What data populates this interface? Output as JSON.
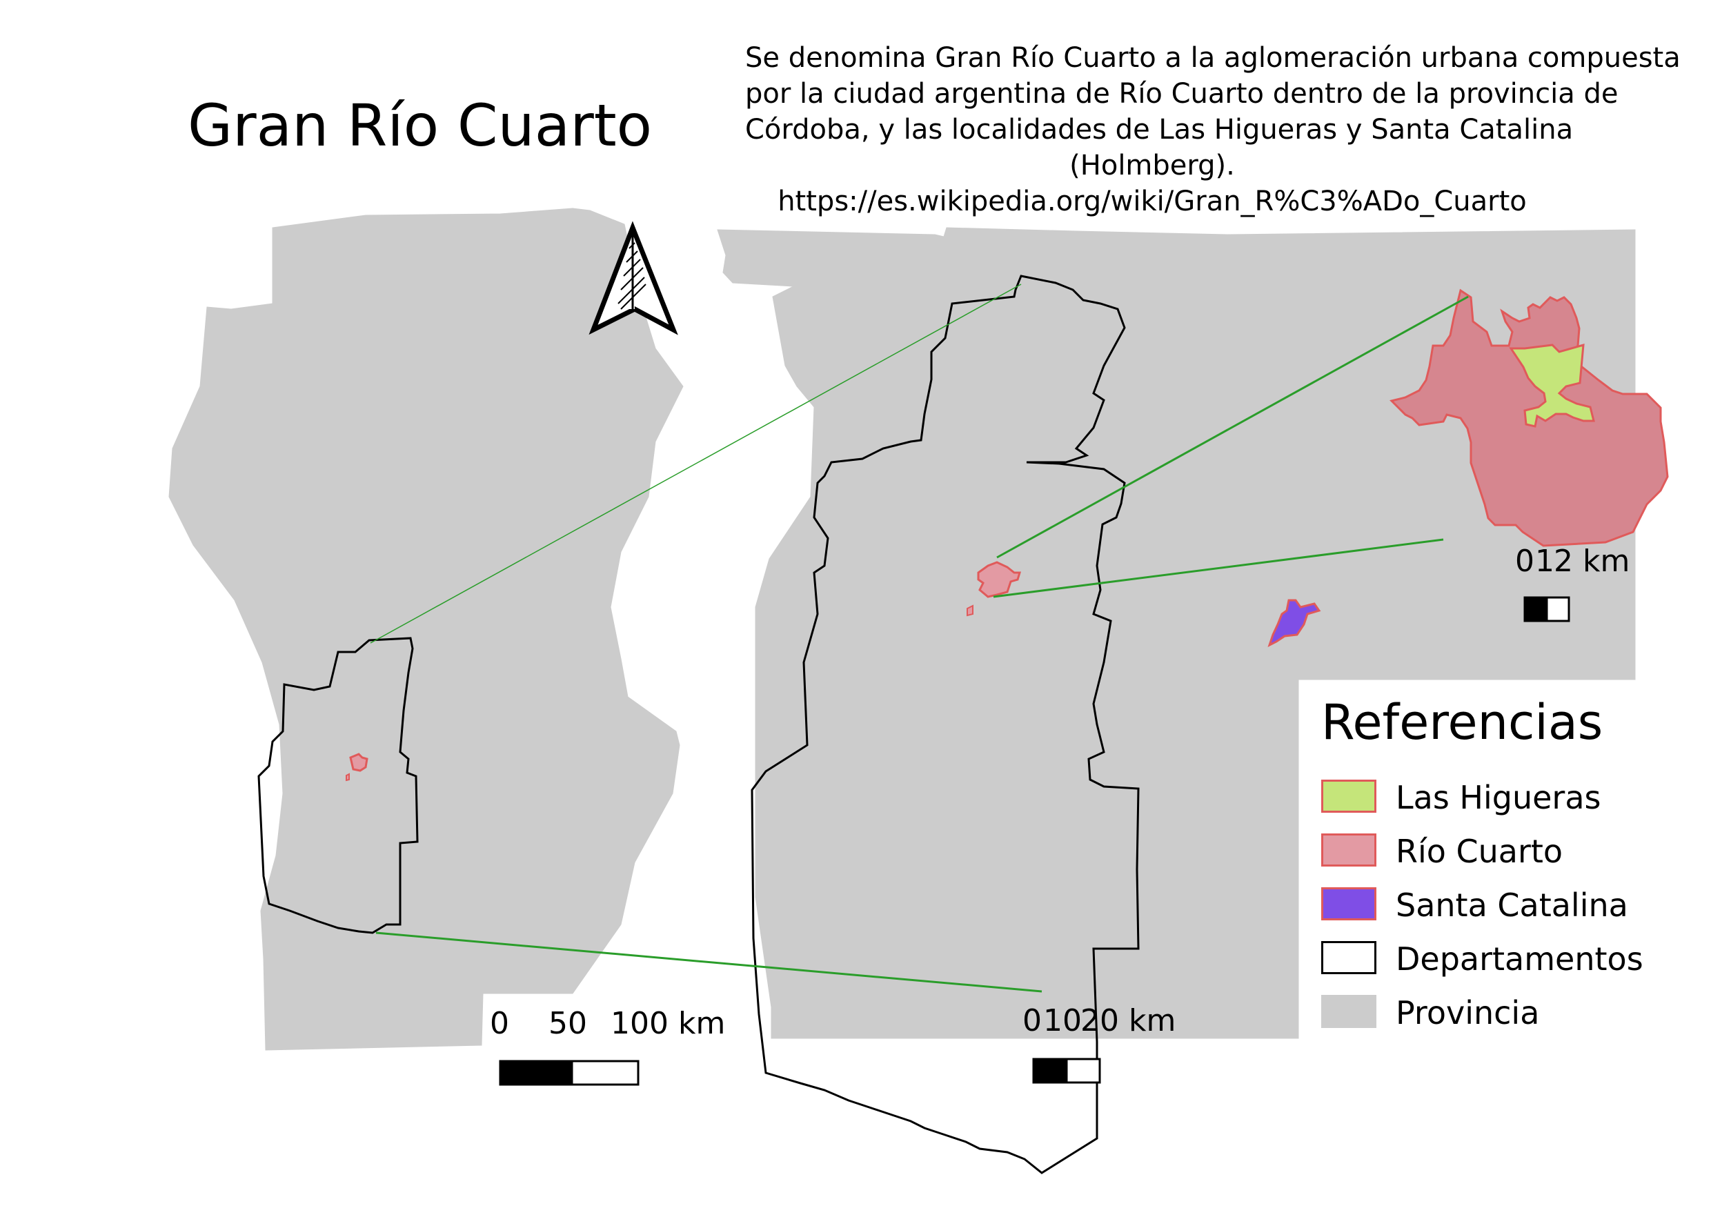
{
  "title": "Gran Río Cuarto",
  "description": {
    "lines": [
      "Se denomina Gran Río Cuarto a la aglomeración urbana compuesta",
      "por la ciudad argentina de Río Cuarto dentro de la provincia de",
      "Córdoba, y las localidades de Las Higueras y Santa Catalina",
      "(Holmberg).",
      "https://es.wikipedia.org/wiki/Gran_R%C3%ADo_Cuarto"
    ]
  },
  "scale_bars": {
    "province": {
      "ticks": [
        "0",
        "50",
        "100 km"
      ]
    },
    "department": {
      "ticks": [
        "0",
        "10",
        "20 km"
      ]
    },
    "city": {
      "ticks": [
        "0",
        "1",
        "2 km"
      ]
    }
  },
  "legend": {
    "title": "Referencias",
    "items": [
      {
        "label": "Las Higueras",
        "fill": "#c5e57a",
        "stroke": "#e05a5a"
      },
      {
        "label": "Río Cuarto",
        "fill": "#e39aa3",
        "stroke": "#e05a5a"
      },
      {
        "label": "Santa Catalina",
        "fill": "#7f4ee6",
        "stroke": "#e05a5a"
      },
      {
        "label": "Departamentos",
        "fill": "#ffffff",
        "stroke": "#000000"
      },
      {
        "label": "Provincia",
        "fill": "#cccccc",
        "stroke": "#cccccc"
      }
    ]
  },
  "colors": {
    "province": "#cccccc",
    "department_outline": "#000000",
    "leader_line": "#2a9d2a",
    "las_higueras": "#c5e57a",
    "rio_cuarto": "#d6868f",
    "santa_catalina": "#7f4ee6",
    "urban_outline": "#e05a5a"
  },
  "north_arrow": {
    "icon": "north-arrow-icon"
  }
}
